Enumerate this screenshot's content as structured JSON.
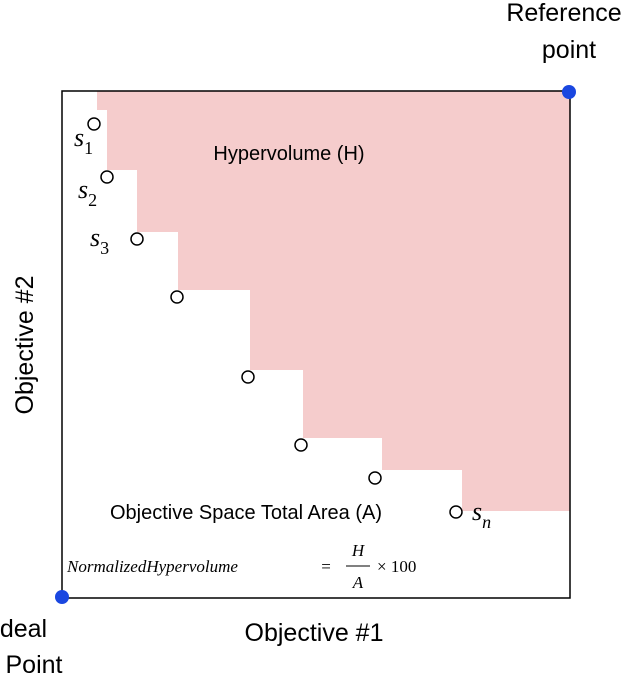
{
  "reference_point": {
    "line1": "Reference",
    "line2": "point"
  },
  "ideal_point": {
    "line1": "Ideal",
    "line2": "Point"
  },
  "x_axis_label": "Objective #1",
  "y_axis_label": "Objective #2",
  "region_labels": {
    "hypervolume": "Hypervolume (H)",
    "total_area": "Objective Space Total Area (A)"
  },
  "solutions": [
    {
      "base": "s",
      "sub": "1"
    },
    {
      "base": "s",
      "sub": "2"
    },
    {
      "base": "s",
      "sub": "3"
    },
    {
      "base": "s",
      "sub": "n"
    }
  ],
  "formula": {
    "lhs": "NormalizedHypervolume",
    "equals": "=",
    "numerator": "H",
    "denominator": "A",
    "rhs": "× 100"
  }
}
